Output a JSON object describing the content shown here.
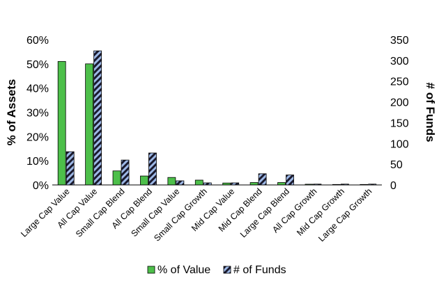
{
  "chart_data": {
    "type": "bar",
    "categories": [
      "Large Cap Value",
      "All Cap Value",
      "Small Cap Blend",
      "All Cap Blend",
      "Small Cap Value",
      "Small Cap Growth",
      "Mid Cap Value",
      "Mid Cap Blend",
      "Large Cap Blend",
      "All Cap Growth",
      "Mid Cap Growth",
      "Large Cap Growth"
    ],
    "series": [
      {
        "name": "% of Value",
        "axis": "left",
        "color": "#4dbf4a",
        "values": [
          0.51,
          0.5,
          0.058,
          0.037,
          0.031,
          0.02,
          0.008,
          0.01,
          0.01,
          0.003,
          0.002,
          0.002
        ]
      },
      {
        "name": "# of Funds",
        "axis": "right",
        "color": "#9db8e6",
        "pattern": "diagonal-stripes",
        "values": [
          80,
          323,
          60,
          77,
          10,
          5,
          5,
          27,
          24,
          2,
          2,
          2
        ]
      }
    ],
    "ylabel": "% of Assets",
    "y2label": "# of Funds",
    "ylim": [
      0,
      0.6
    ],
    "y2lim": [
      0,
      350
    ],
    "yticks": [
      "0%",
      "10%",
      "20%",
      "30%",
      "40%",
      "50%",
      "60%"
    ],
    "y2ticks": [
      "0",
      "50",
      "100",
      "150",
      "200",
      "250",
      "300",
      "350"
    ],
    "grid": false,
    "legend": "bottom"
  }
}
